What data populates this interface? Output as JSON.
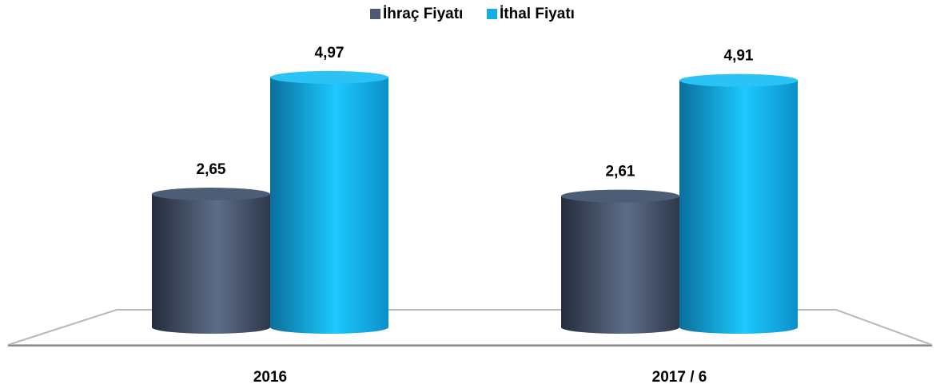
{
  "chart_data": {
    "type": "bar",
    "categories": [
      "2016",
      "2017 / 6"
    ],
    "series": [
      {
        "name": "İhraç Fiyatı",
        "color": "#4b5a72",
        "values": [
          2.65,
          2.61
        ],
        "value_labels": [
          "2,65",
          "2,61"
        ]
      },
      {
        "name": "İthal Fiyatı",
        "color": "#13aee8",
        "values": [
          4.97,
          4.91
        ],
        "value_labels": [
          "4,97",
          "4,91"
        ]
      }
    ],
    "legend": "top"
  }
}
